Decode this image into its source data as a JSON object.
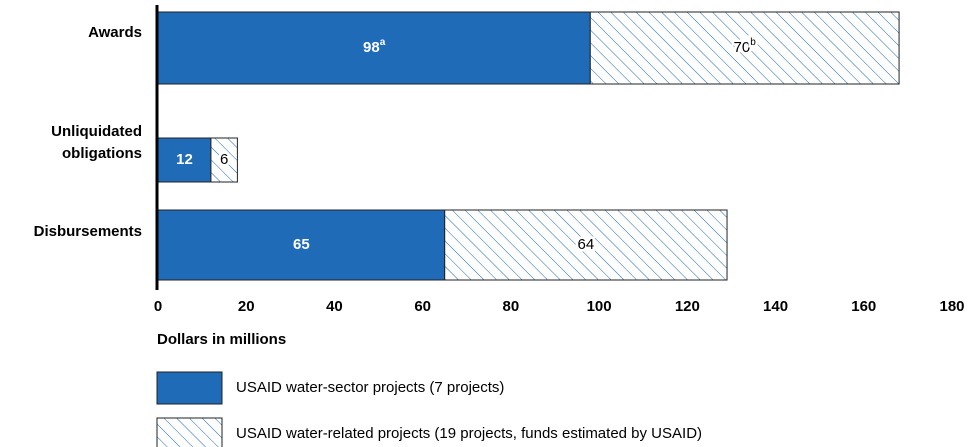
{
  "chart_data": {
    "type": "stacked-barh",
    "categories": [
      "Awards",
      "Unliquidated obligations",
      "Disbursements"
    ],
    "series": [
      {
        "name": "USAID water-sector projects (7 projects)",
        "color": "#1f6bb8",
        "fill": "solid",
        "values": [
          98,
          12,
          65
        ],
        "notes": [
          "a",
          null,
          null
        ]
      },
      {
        "name": "USAID water-related projects (19 projects, funds estimated by USAID)",
        "color": "#1f6bb8",
        "fill": "hatch",
        "values": [
          70,
          6,
          64
        ],
        "notes": [
          "b",
          null,
          null
        ]
      }
    ],
    "xlabel": "Dollars in millions",
    "xlim": [
      0,
      180
    ],
    "xticks": [
      0,
      20,
      40,
      60,
      80,
      100,
      120,
      140,
      160,
      180
    ]
  }
}
